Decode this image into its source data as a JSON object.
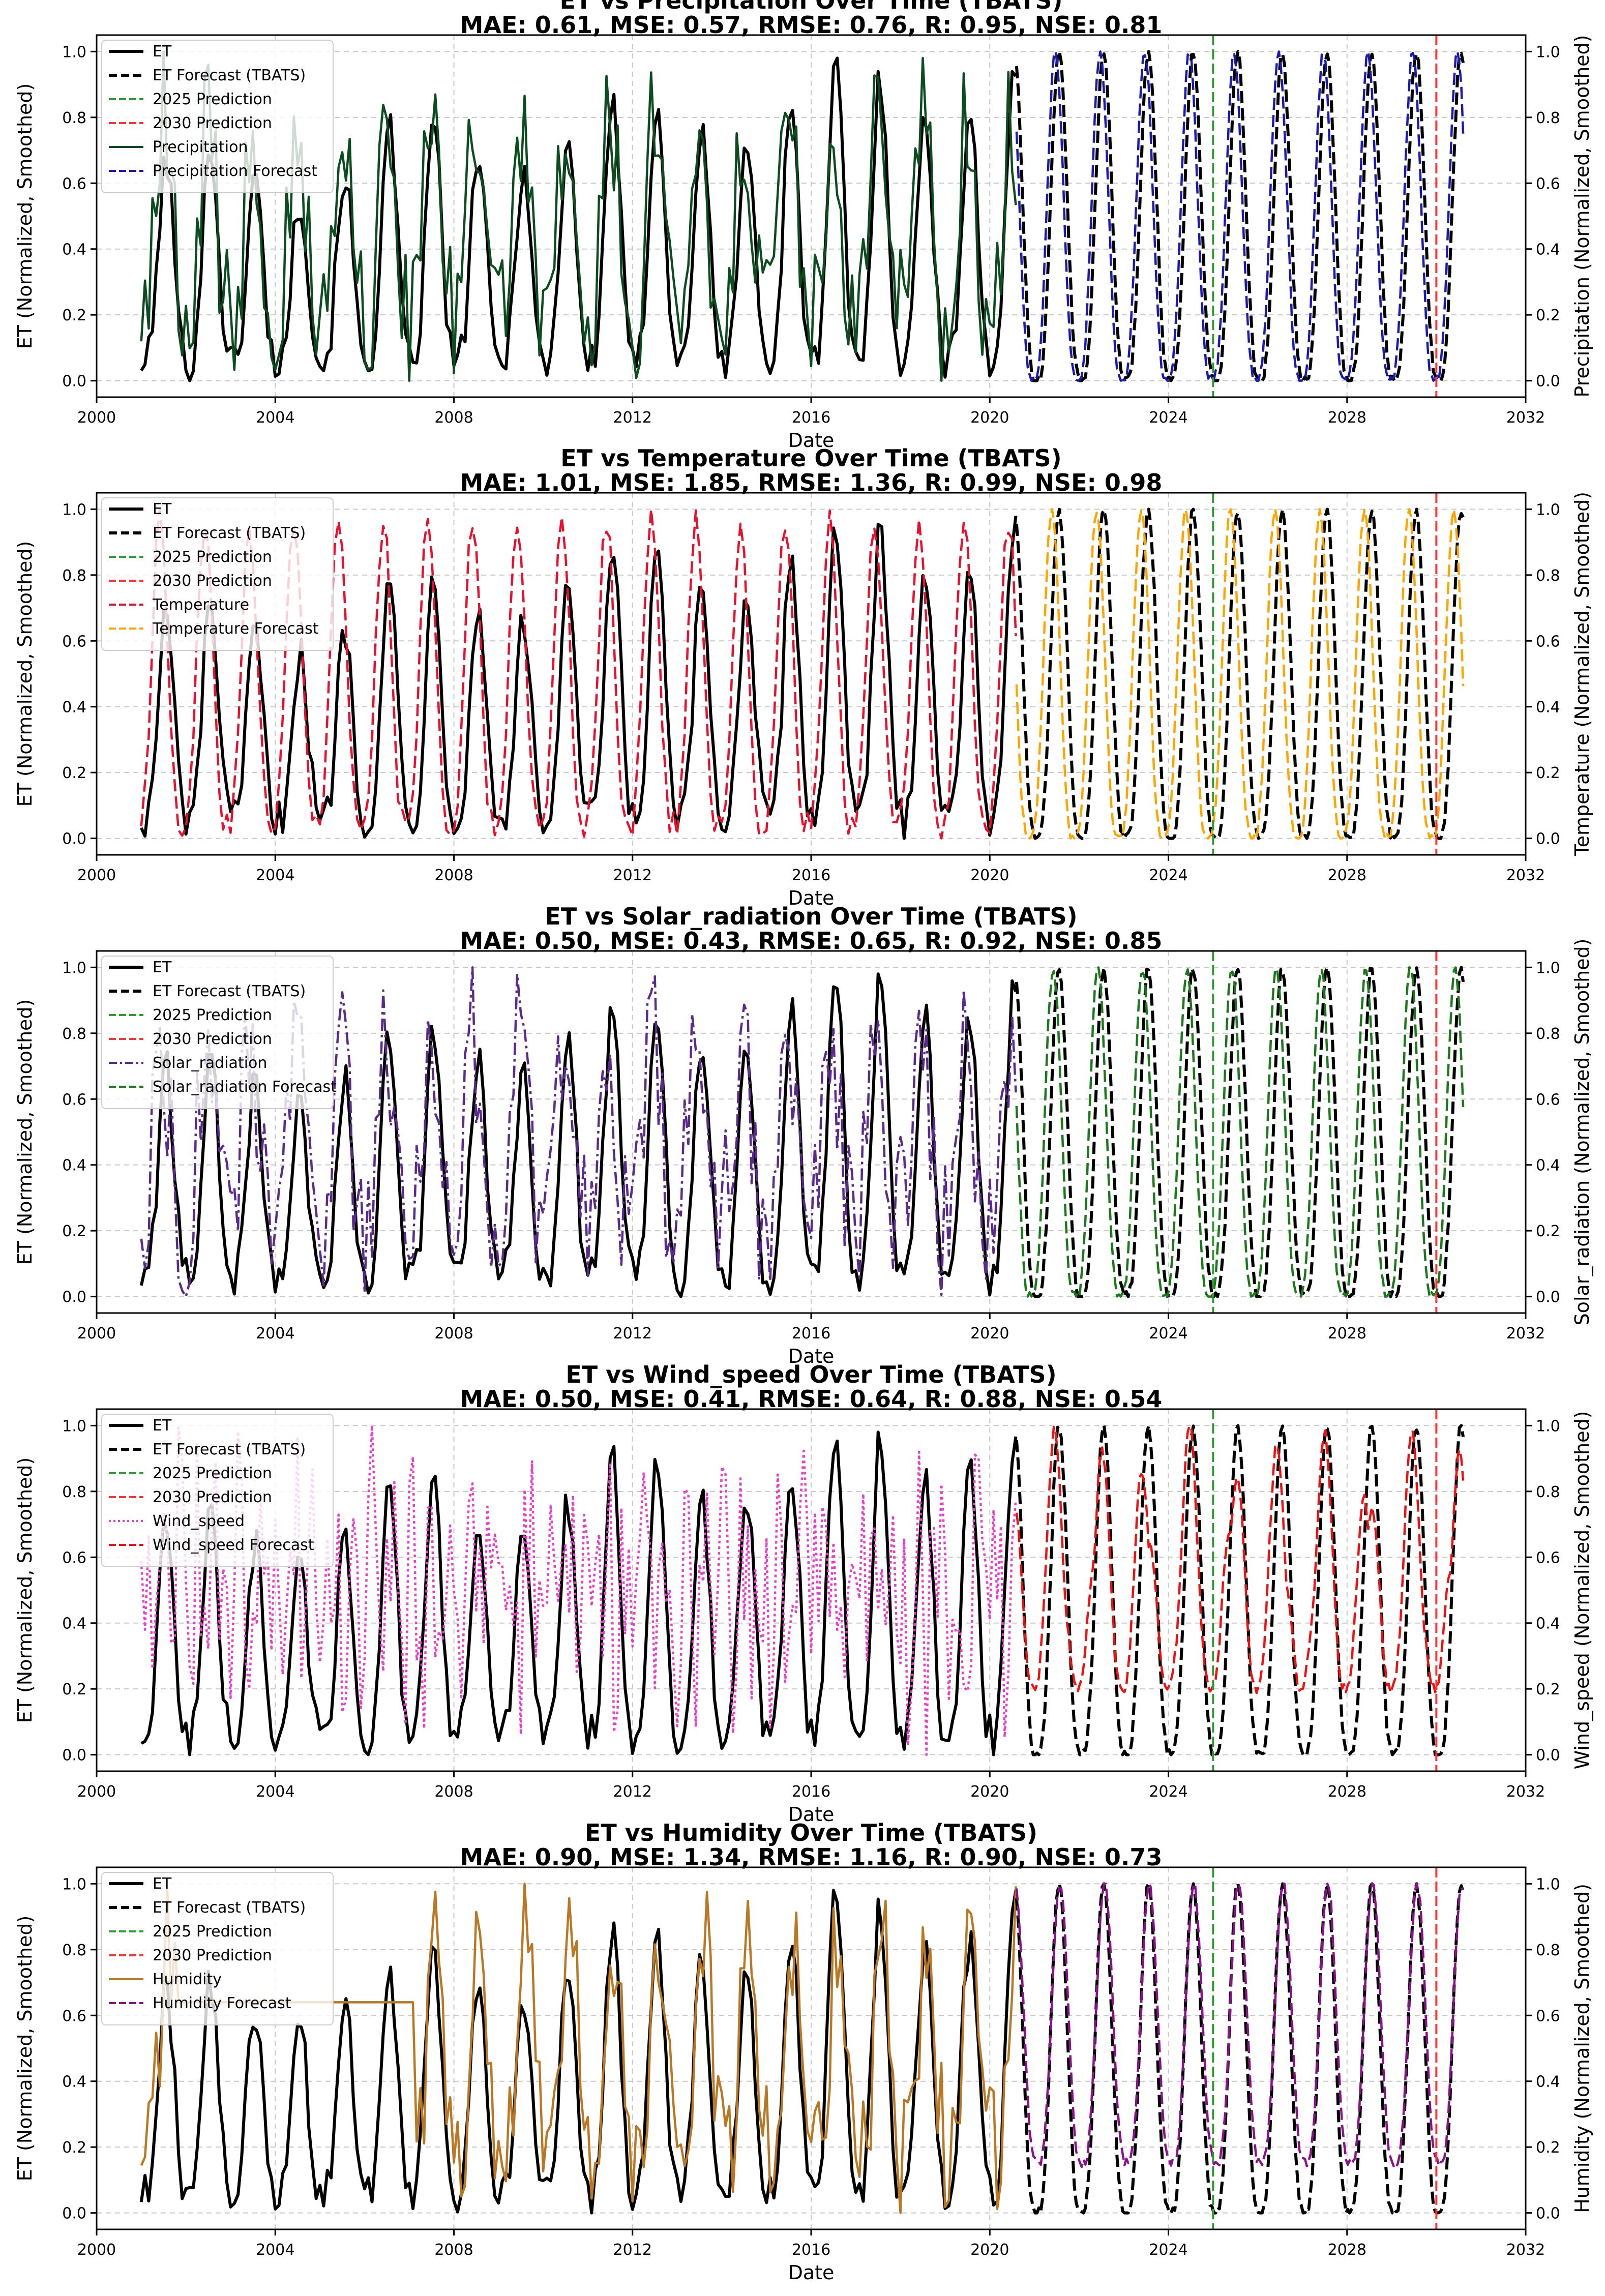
{
  "chart_data": [
    {
      "type": "line",
      "title": "ET vs Precipitation Over Time (TBATS)",
      "subtitle": "MAE: 0.61, MSE: 0.57, RMSE: 0.76, R: 0.95, NSE: 0.81",
      "xlabel": "Date",
      "ylabel": "ET (Normalized, Smoothed)",
      "y2label": "Precipitation (Normalized, Smoothed)",
      "xlim": [
        2000,
        2032
      ],
      "ylim": [
        0,
        1
      ],
      "xticks": [
        "2000",
        "2004",
        "2008",
        "2012",
        "2016",
        "2020",
        "2024",
        "2028",
        "2032"
      ],
      "yticks": [
        "0.0",
        "0.2",
        "0.4",
        "0.6",
        "0.8",
        "1.0"
      ],
      "grid": true,
      "legend_position": "top-left",
      "legend": [
        "ET",
        "ET Forecast (TBATS)",
        "2025 Prediction",
        "2030 Prediction",
        "Precipitation",
        "Precipitation Forecast"
      ],
      "series": [
        {
          "name": "ET",
          "style": "solid",
          "color": "#000000",
          "period": "2001-2020.6",
          "shape": "seasonal",
          "min": 0.0,
          "max": 0.96
        },
        {
          "name": "ET Forecast (TBATS)",
          "style": "dashed",
          "color": "#000000",
          "period": "2020.6-2030.6",
          "shape": "seasonal",
          "min": 0.0,
          "max": 1.0
        },
        {
          "name": "Precipitation",
          "style": "solid",
          "color": "#0b4d1f",
          "period": "2001-2020.6",
          "shape": "seasonal noisy",
          "min": 0.0,
          "max": 1.0
        },
        {
          "name": "Precipitation Forecast",
          "style": "dashed",
          "color": "#1a1ab3",
          "period": "2020.6-2030.6",
          "shape": "seasonal",
          "min": 0.0,
          "max": 1.0
        }
      ],
      "markers": [
        {
          "name": "2025 Prediction",
          "x": 2025,
          "color": "#2ca02c"
        },
        {
          "name": "2030 Prediction",
          "x": 2030,
          "color": "#ff3333"
        }
      ]
    },
    {
      "type": "line",
      "title": "ET vs Temperature Over Time (TBATS)",
      "subtitle": "MAE: 1.01, MSE: 1.85, RMSE: 1.36, R: 0.99, NSE: 0.98",
      "xlabel": "Date",
      "ylabel": "ET (Normalized, Smoothed)",
      "y2label": "Temperature (Normalized, Smoothed)",
      "xlim": [
        2000,
        2032
      ],
      "ylim": [
        0,
        1
      ],
      "xticks": [
        "2000",
        "2004",
        "2008",
        "2012",
        "2016",
        "2020",
        "2024",
        "2028",
        "2032"
      ],
      "yticks": [
        "0.0",
        "0.2",
        "0.4",
        "0.6",
        "0.8",
        "1.0"
      ],
      "grid": true,
      "legend_position": "top-left",
      "legend": [
        "ET",
        "ET Forecast (TBATS)",
        "2025 Prediction",
        "2030 Prediction",
        "Temperature",
        "Temperature Forecast"
      ],
      "series": [
        {
          "name": "ET",
          "style": "solid",
          "color": "#000000",
          "period": "2001-2020.6",
          "shape": "seasonal",
          "min": 0.0,
          "max": 1.0
        },
        {
          "name": "ET Forecast (TBATS)",
          "style": "dashed",
          "color": "#000000",
          "period": "2020.6-2030.6",
          "shape": "seasonal",
          "min": 0.0,
          "max": 1.0
        },
        {
          "name": "Temperature",
          "style": "dashed",
          "color": "#e8112d",
          "period": "2001-2020.6",
          "shape": "seasonal",
          "min": 0.0,
          "max": 1.0
        },
        {
          "name": "Temperature Forecast",
          "style": "dashed",
          "color": "#ffa500",
          "period": "2020.6-2030.6",
          "shape": "seasonal",
          "min": 0.0,
          "max": 1.0
        }
      ],
      "markers": [
        {
          "name": "2025 Prediction",
          "x": 2025,
          "color": "#2ca02c"
        },
        {
          "name": "2030 Prediction",
          "x": 2030,
          "color": "#ff3333"
        }
      ]
    },
    {
      "type": "line",
      "title": "ET vs Solar_radiation Over Time (TBATS)",
      "subtitle": "MAE: 0.50, MSE: 0.43, RMSE: 0.65, R: 0.92, NSE: 0.85",
      "xlabel": "Date",
      "ylabel": "ET (Normalized, Smoothed)",
      "y2label": "Solar_radiation (Normalized, Smoothed)",
      "xlim": [
        2000,
        2032
      ],
      "ylim": [
        0,
        1
      ],
      "xticks": [
        "2000",
        "2004",
        "2008",
        "2012",
        "2016",
        "2020",
        "2024",
        "2028",
        "2032"
      ],
      "yticks": [
        "0.0",
        "0.2",
        "0.4",
        "0.6",
        "0.8",
        "1.0"
      ],
      "grid": true,
      "legend_position": "top-left",
      "legend": [
        "ET",
        "ET Forecast (TBATS)",
        "2025 Prediction",
        "2030 Prediction",
        "Solar_radiation",
        "Solar_radiation Forecast"
      ],
      "series": [
        {
          "name": "ET",
          "style": "solid",
          "color": "#000000",
          "period": "2001-2020.6",
          "shape": "seasonal",
          "min": 0.0,
          "max": 0.96
        },
        {
          "name": "ET Forecast (TBATS)",
          "style": "dashed",
          "color": "#000000",
          "period": "2020.6-2030.6",
          "shape": "seasonal",
          "min": 0.0,
          "max": 1.0
        },
        {
          "name": "Solar_radiation",
          "style": "dashdot",
          "color": "#5b2a8c",
          "period": "2001-2020.6",
          "shape": "seasonal noisy",
          "min": 0.0,
          "max": 1.0
        },
        {
          "name": "Solar_radiation Forecast",
          "style": "dashed",
          "color": "#1a7a1a",
          "period": "2020.6-2030.6",
          "shape": "seasonal",
          "min": 0.0,
          "max": 1.0
        }
      ],
      "markers": [
        {
          "name": "2025 Prediction",
          "x": 2025,
          "color": "#2ca02c"
        },
        {
          "name": "2030 Prediction",
          "x": 2030,
          "color": "#ff3333"
        }
      ]
    },
    {
      "type": "line",
      "title": "ET vs Wind_speed Over Time (TBATS)",
      "subtitle": "MAE: 0.50, MSE: 0.41, RMSE: 0.64, R: 0.88, NSE: 0.54",
      "xlabel": "Date",
      "ylabel": "ET (Normalized, Smoothed)",
      "y2label": "Wind_speed (Normalized, Smoothed)",
      "xlim": [
        2000,
        2032
      ],
      "ylim": [
        0,
        1
      ],
      "xticks": [
        "2000",
        "2004",
        "2008",
        "2012",
        "2016",
        "2020",
        "2024",
        "2028",
        "2032"
      ],
      "yticks": [
        "0.0",
        "0.2",
        "0.4",
        "0.6",
        "0.8",
        "1.0"
      ],
      "grid": true,
      "legend_position": "top-left",
      "legend": [
        "ET",
        "ET Forecast (TBATS)",
        "2025 Prediction",
        "2030 Prediction",
        "Wind_speed",
        "Wind_speed Forecast"
      ],
      "series": [
        {
          "name": "ET",
          "style": "solid",
          "color": "#000000",
          "period": "2001-2020.6",
          "shape": "seasonal",
          "min": 0.0,
          "max": 0.96
        },
        {
          "name": "ET Forecast (TBATS)",
          "style": "dashed",
          "color": "#000000",
          "period": "2020.6-2030.6",
          "shape": "seasonal",
          "min": 0.0,
          "max": 1.0
        },
        {
          "name": "Wind_speed",
          "style": "dotted",
          "color": "#e83ec8",
          "period": "2001-2020.6",
          "shape": "noisy",
          "min": 0.0,
          "max": 1.0
        },
        {
          "name": "Wind_speed Forecast",
          "style": "dashed",
          "color": "#ee1111",
          "period": "2020.6-2030.6",
          "shape": "seasonal",
          "min": 0.0,
          "max": 1.0
        }
      ],
      "markers": [
        {
          "name": "2025 Prediction",
          "x": 2025,
          "color": "#2ca02c"
        },
        {
          "name": "2030 Prediction",
          "x": 2030,
          "color": "#ff3333"
        }
      ]
    },
    {
      "type": "line",
      "title": "ET vs Humidity Over Time (TBATS)",
      "subtitle": "MAE: 0.90, MSE: 1.34, RMSE: 1.16, R: 0.90, NSE: 0.73",
      "xlabel": "Date",
      "ylabel": "ET (Normalized, Smoothed)",
      "y2label": "Humidity (Normalized, Smoothed)",
      "xlim": [
        2000,
        2032
      ],
      "ylim": [
        0,
        1
      ],
      "xticks": [
        "2000",
        "2004",
        "2008",
        "2012",
        "2016",
        "2020",
        "2024",
        "2028",
        "2032"
      ],
      "yticks": [
        "0.0",
        "0.2",
        "0.4",
        "0.6",
        "0.8",
        "1.0"
      ],
      "grid": true,
      "legend_position": "top-left",
      "legend": [
        "ET",
        "ET Forecast (TBATS)",
        "2025 Prediction",
        "2030 Prediction",
        "Humidity",
        "Humidity Forecast"
      ],
      "series": [
        {
          "name": "ET",
          "style": "solid",
          "color": "#000000",
          "period": "2001-2020.6",
          "shape": "seasonal",
          "min": 0.0,
          "max": 1.0
        },
        {
          "name": "ET Forecast (TBATS)",
          "style": "dashed",
          "color": "#000000",
          "period": "2020.6-2030.6",
          "shape": "seasonal",
          "min": 0.0,
          "max": 1.0
        },
        {
          "name": "Humidity",
          "style": "solid",
          "color": "#b87824",
          "period": "2001-2020.6",
          "shape": "flat 0.64 from 2001.8 to 2007.1, then seasonal",
          "min": 0.0,
          "max": 1.0
        },
        {
          "name": "Humidity Forecast",
          "style": "dashed",
          "color": "#8b108b",
          "period": "2020.6-2030.6",
          "shape": "seasonal",
          "min": 0.0,
          "max": 1.0
        }
      ],
      "markers": [
        {
          "name": "2025 Prediction",
          "x": 2025,
          "color": "#2ca02c"
        },
        {
          "name": "2030 Prediction",
          "x": 2030,
          "color": "#ff3333"
        }
      ]
    }
  ]
}
